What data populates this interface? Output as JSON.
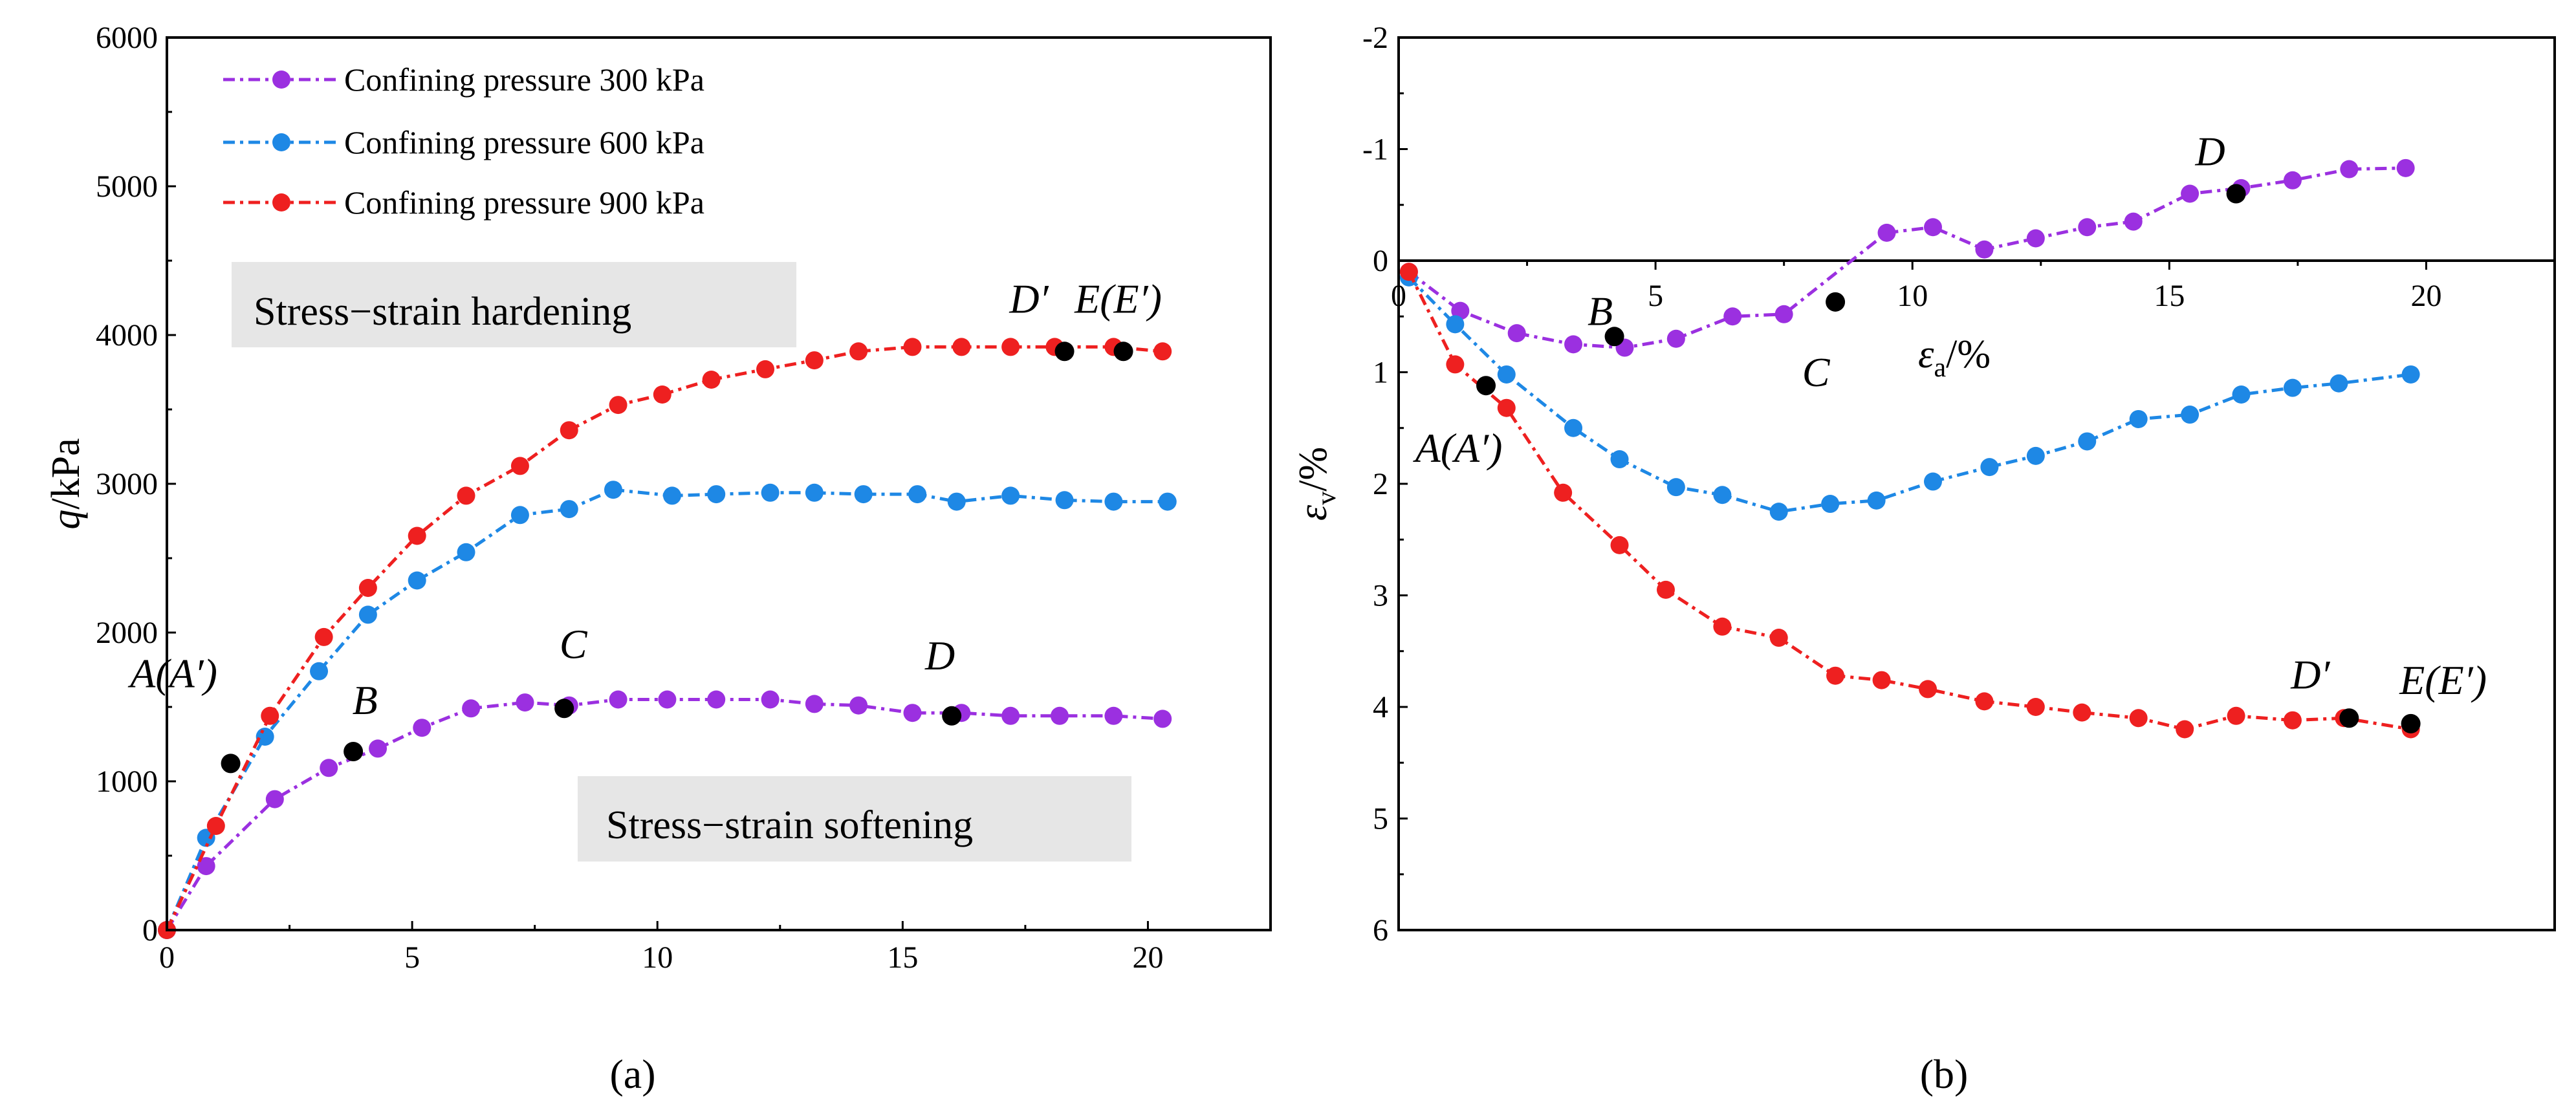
{
  "chart_data": [
    {
      "type": "line",
      "panel_label": "(a)",
      "xlabel": "",
      "ylabel": {
        "var": "q",
        "unit": "/kPa"
      },
      "xlim": [
        0,
        22.5
      ],
      "ylim": [
        0,
        6000
      ],
      "xticks": [
        "0",
        "5",
        "10",
        "15",
        "20"
      ],
      "yticks": [
        "0",
        "1000",
        "2000",
        "3000",
        "4000",
        "5000",
        "6000"
      ],
      "legend": {
        "position": "top-left"
      },
      "series": [
        {
          "name": "Confining pressure 300 kPa",
          "color": "#9b30e0",
          "x": [
            0,
            0.8,
            2.2,
            3.3,
            4.3,
            5.2,
            6.2,
            7.3,
            8.2,
            9.2,
            10.2,
            11.2,
            12.3,
            13.2,
            14.1,
            15.2,
            16.2,
            17.2,
            18.2,
            19.3,
            20.3
          ],
          "y": [
            0,
            430,
            880,
            1090,
            1220,
            1360,
            1490,
            1530,
            1510,
            1550,
            1550,
            1550,
            1550,
            1520,
            1510,
            1460,
            1460,
            1440,
            1440,
            1440,
            1420
          ]
        },
        {
          "name": "Confining pressure 600 kPa",
          "color": "#1e88e5",
          "x": [
            0,
            0.8,
            2.0,
            3.1,
            4.1,
            5.1,
            6.1,
            7.2,
            8.2,
            9.1,
            10.3,
            11.2,
            12.3,
            13.2,
            14.2,
            15.3,
            16.1,
            17.2,
            18.3,
            19.3,
            20.4
          ],
          "y": [
            0,
            620,
            1300,
            1740,
            2120,
            2350,
            2540,
            2790,
            2830,
            2960,
            2920,
            2930,
            2940,
            2940,
            2930,
            2930,
            2880,
            2920,
            2890,
            2880,
            2880
          ]
        },
        {
          "name": "Confining pressure 900 kPa",
          "color": "#ee2020",
          "x": [
            0,
            1.0,
            2.1,
            3.2,
            4.1,
            5.1,
            6.1,
            7.2,
            8.2,
            9.2,
            10.1,
            11.1,
            12.2,
            13.2,
            14.1,
            15.2,
            16.2,
            17.2,
            18.1,
            19.3,
            20.3
          ],
          "y": [
            0,
            700,
            1440,
            1970,
            2300,
            2650,
            2920,
            3120,
            3360,
            3530,
            3600,
            3700,
            3770,
            3830,
            3890,
            3920,
            3920,
            3920,
            3920,
            3920,
            3890
          ]
        }
      ],
      "key_points": [
        {
          "label": "A(A′)",
          "x": 1.3,
          "y": 1120
        },
        {
          "label": "B",
          "x": 3.8,
          "y": 1200
        },
        {
          "label": "C",
          "x": 8.1,
          "y": 1490
        },
        {
          "label": "D",
          "x": 16.0,
          "y": 1440
        },
        {
          "label": "D′",
          "x": 18.3,
          "y": 3890
        },
        {
          "label": "E(E′)",
          "x": 19.5,
          "y": 3890
        }
      ],
      "annotations": [
        "Stress−strain hardening",
        "Stress−strain softening"
      ]
    },
    {
      "type": "line",
      "panel_label": "(b)",
      "xlabel": {
        "var": "ε",
        "sub": "a",
        "unit": "/%"
      },
      "ylabel": {
        "var": "ε",
        "sub": "v",
        "unit": "/%"
      },
      "xlim": [
        0,
        22.5
      ],
      "ylim": [
        -2,
        6
      ],
      "y_inverted": true,
      "xticks": [
        "0",
        "5",
        "10",
        "15",
        "20"
      ],
      "yticks": [
        "-2",
        "-1",
        "0",
        "1",
        "2",
        "3",
        "4",
        "5",
        "6"
      ],
      "series": [
        {
          "name": "Confining pressure 300 kPa",
          "color": "#9b30e0",
          "x": [
            0.2,
            1.2,
            2.3,
            3.4,
            4.4,
            5.4,
            6.5,
            7.5,
            9.5,
            10.4,
            11.4,
            12.4,
            13.4,
            14.3,
            15.4,
            16.4,
            17.4,
            18.5,
            19.6
          ],
          "y": [
            0.1,
            0.45,
            0.65,
            0.75,
            0.78,
            0.7,
            0.5,
            0.48,
            -0.25,
            -0.3,
            -0.1,
            -0.2,
            -0.3,
            -0.35,
            -0.6,
            -0.65,
            -0.72,
            -0.82,
            -0.83
          ]
        },
        {
          "name": "Confining pressure 600 kPa",
          "color": "#1e88e5",
          "x": [
            0.2,
            1.1,
            2.1,
            3.4,
            4.3,
            5.4,
            6.3,
            7.4,
            8.4,
            9.3,
            10.4,
            11.5,
            12.4,
            13.4,
            14.4,
            15.4,
            16.4,
            17.4,
            18.3,
            19.7
          ],
          "y": [
            0.15,
            0.57,
            1.02,
            1.5,
            1.78,
            2.03,
            2.1,
            2.25,
            2.18,
            2.15,
            1.98,
            1.85,
            1.75,
            1.62,
            1.42,
            1.38,
            1.2,
            1.14,
            1.1,
            1.02
          ]
        },
        {
          "name": "Confining pressure 900 kPa",
          "color": "#ee2020",
          "x": [
            0.2,
            1.1,
            2.1,
            3.2,
            4.3,
            5.2,
            6.3,
            7.4,
            8.5,
            9.4,
            10.3,
            11.4,
            12.4,
            13.3,
            14.4,
            15.3,
            16.3,
            17.4,
            18.4,
            19.7
          ],
          "y": [
            0.1,
            0.93,
            1.32,
            2.08,
            2.55,
            2.95,
            3.28,
            3.38,
            3.72,
            3.76,
            3.84,
            3.95,
            4.0,
            4.05,
            4.1,
            4.2,
            4.08,
            4.12,
            4.1,
            4.2
          ]
        }
      ],
      "key_points": [
        {
          "label": "A(A′)",
          "x": 1.7,
          "y": 1.12
        },
        {
          "label": "B",
          "x": 4.2,
          "y": 0.68
        },
        {
          "label": "C",
          "x": 8.5,
          "y": 0.37
        },
        {
          "label": "D",
          "x": 16.3,
          "y": -0.6
        },
        {
          "label": "D′",
          "x": 18.5,
          "y": 4.1
        },
        {
          "label": "E(E′)",
          "x": 19.7,
          "y": 4.15
        }
      ]
    }
  ]
}
